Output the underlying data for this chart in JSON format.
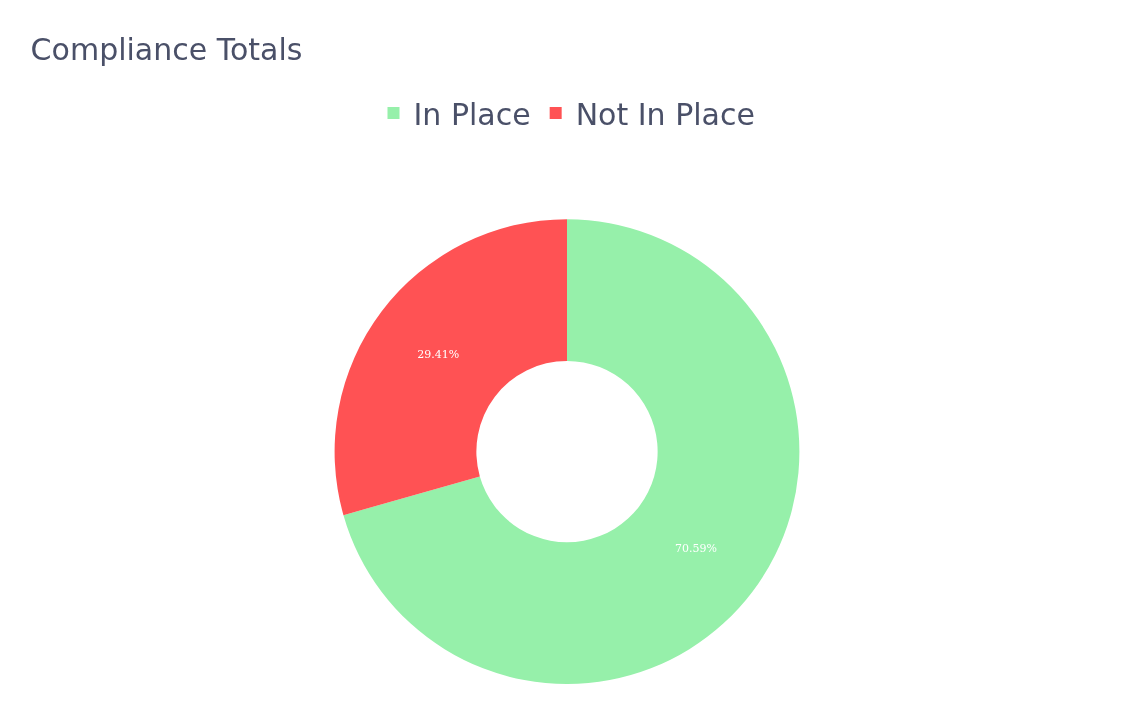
{
  "chart_data": {
    "type": "donut",
    "title": "Compliance Totals",
    "categories": [
      "In Place",
      "Not In Place"
    ],
    "values": [
      70.59,
      29.41
    ],
    "colors": [
      "#96f0aa",
      "#ff5254"
    ],
    "value_labels": [
      "70.59%",
      "29.41%"
    ],
    "legend": "top"
  }
}
